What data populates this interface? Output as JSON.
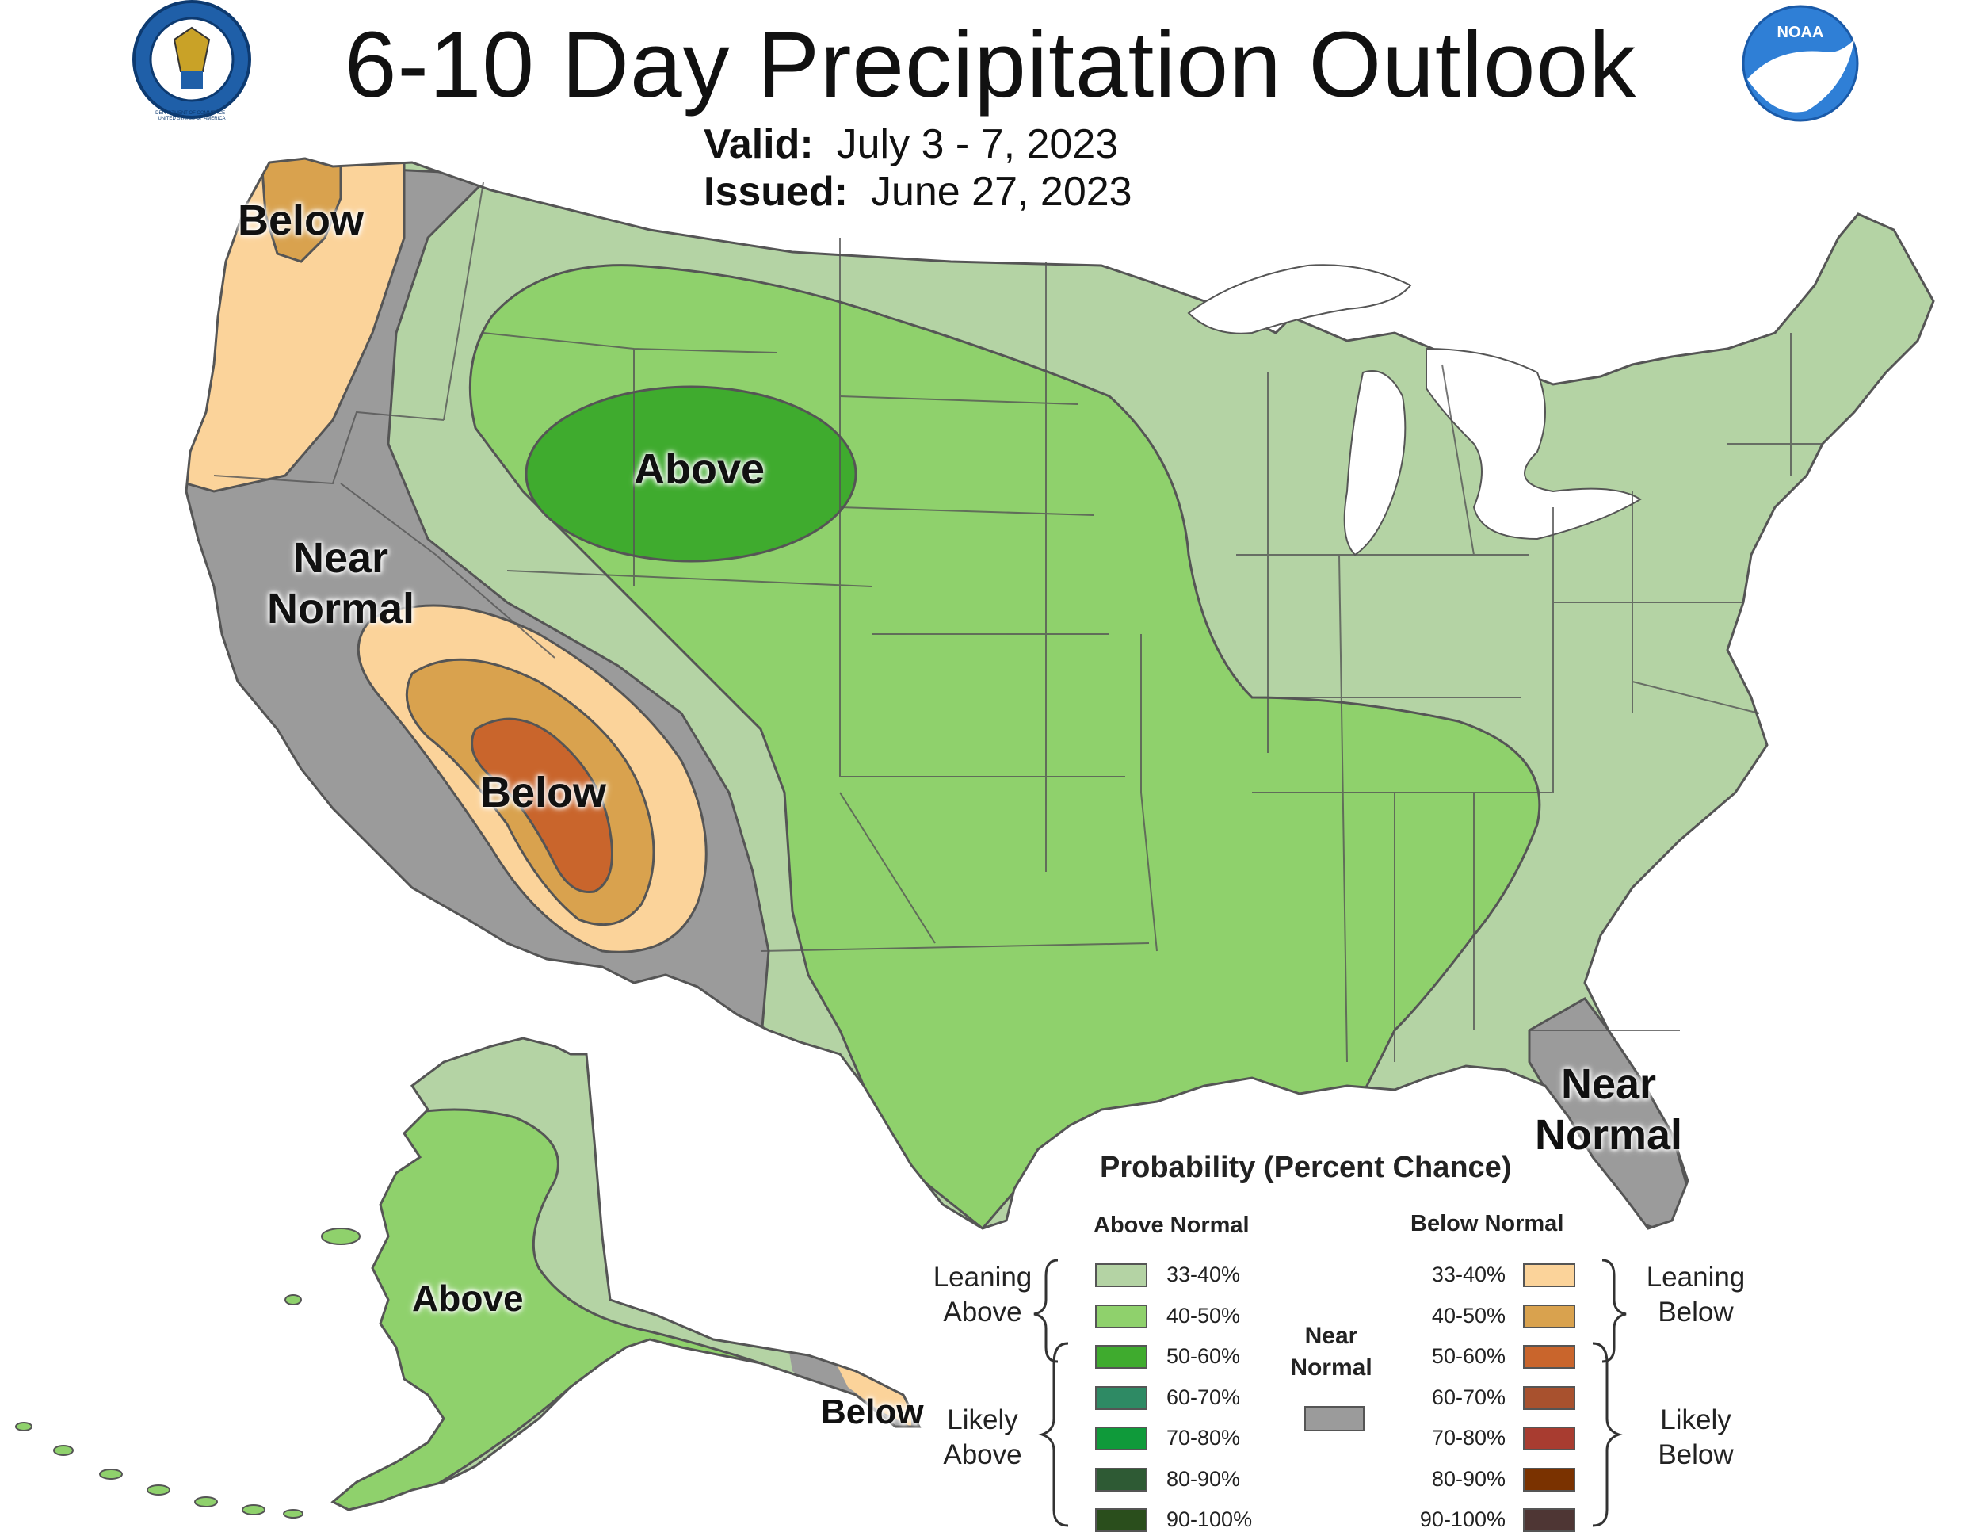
{
  "title": "6-10 Day Precipitation Outlook",
  "valid_label": "Valid:",
  "valid_value": "July 3 - 7, 2023",
  "issued_label": "Issued:",
  "issued_value": "June 27, 2023",
  "noaa_text": "NOAA",
  "seal_text": "DEPARTMENT OF COMMERCE · UNITED STATES OF AMERICA",
  "map_labels": {
    "below_nw": "Below",
    "above_north": "Above",
    "near_normal_west_1": "Near",
    "near_normal_west_2": "Normal",
    "below_sw": "Below",
    "near_normal_fl_1": "Near",
    "near_normal_fl_2": "Normal",
    "above_ak": "Above",
    "below_ak": "Below"
  },
  "legend": {
    "title": "Probability (Percent Chance)",
    "above_header": "Above Normal",
    "below_header": "Below Normal",
    "near_header_1": "Near",
    "near_header_2": "Normal",
    "leaning_above_1": "Leaning",
    "leaning_above_2": "Above",
    "likely_above_1": "Likely",
    "likely_above_2": "Above",
    "leaning_below_1": "Leaning",
    "leaning_below_2": "Below",
    "likely_below_1": "Likely",
    "likely_below_2": "Below",
    "above": [
      {
        "label": "33-40%",
        "color": "#b4d3a4"
      },
      {
        "label": "40-50%",
        "color": "#8fd16c"
      },
      {
        "label": "50-60%",
        "color": "#3fab2e"
      },
      {
        "label": "60-70%",
        "color": "#2e8a64"
      },
      {
        "label": "70-80%",
        "color": "#0f9a3a"
      },
      {
        "label": "80-90%",
        "color": "#2e5a34"
      },
      {
        "label": "90-100%",
        "color": "#2a4e1c"
      }
    ],
    "below": [
      {
        "label": "33-40%",
        "color": "#fbd39a"
      },
      {
        "label": "40-50%",
        "color": "#d9a24e"
      },
      {
        "label": "50-60%",
        "color": "#c9652c"
      },
      {
        "label": "60-70%",
        "color": "#a8512e"
      },
      {
        "label": "70-80%",
        "color": "#a83c30"
      },
      {
        "label": "80-90%",
        "color": "#7a3200"
      },
      {
        "label": "90-100%",
        "color": "#4e3634"
      }
    ],
    "near_color": "#9b9b9b"
  },
  "colors": {
    "gray": "#9b9b9b",
    "lean_above": "#b4d3a4",
    "above_40": "#8fd16c",
    "above_50": "#3fab2e",
    "lean_below": "#fbd39a",
    "below_40": "#d9a24e",
    "below_50": "#c9652c",
    "border": "#555555"
  }
}
